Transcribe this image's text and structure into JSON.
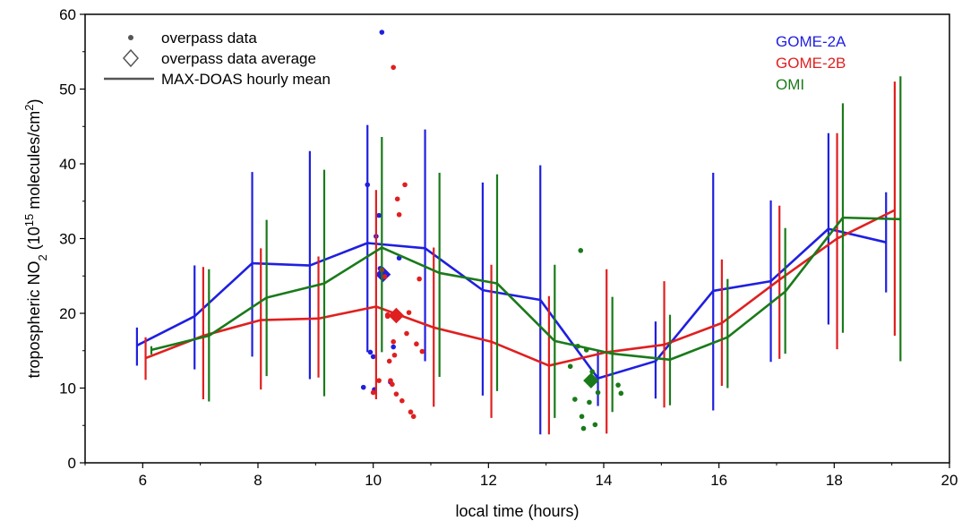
{
  "chart_data": {
    "type": "line",
    "xlabel": "local time (hours)",
    "ylabel_parts": {
      "prefix": "tropospheric NO",
      "sub": "2",
      "mid": " (10",
      "sup1": "15",
      "mid2": " molecules/cm",
      "sup2": "2",
      "suffix": ")"
    },
    "xlim": [
      5,
      20
    ],
    "ylim": [
      0,
      60
    ],
    "xticks": [
      6,
      8,
      10,
      12,
      14,
      16,
      18,
      20
    ],
    "yticks": [
      0,
      10,
      20,
      30,
      40,
      50,
      60
    ],
    "legend": {
      "items": [
        {
          "symbol": "dot",
          "label": "overpass data"
        },
        {
          "symbol": "diamond",
          "label": "overpass data average"
        },
        {
          "symbol": "line",
          "label": "MAX-DOAS hourly mean"
        }
      ],
      "placement": "top-left"
    },
    "instrument_labels": [
      {
        "name": "GOME-2A",
        "color": "#1f1fe0"
      },
      {
        "name": "GOME-2B",
        "color": "#e01f1f"
      },
      {
        "name": "OMI",
        "color": "#1a7a1a"
      }
    ],
    "series": [
      {
        "name": "GOME-2A",
        "color": "#1f1fe0",
        "x": [
          5.9,
          6.9,
          7.9,
          8.9,
          9.9,
          10.9,
          11.9,
          12.9,
          13.9,
          14.9,
          15.9,
          16.9,
          17.9,
          18.9
        ],
        "y": [
          15.7,
          19.6,
          26.7,
          26.4,
          29.4,
          28.7,
          23.1,
          21.8,
          11.3,
          13.6,
          23.0,
          24.3,
          31.3,
          29.5
        ],
        "err_low": [
          13.0,
          12.5,
          14.2,
          11.2,
          14.8,
          13.6,
          9.0,
          3.8,
          7.6,
          8.6,
          7.0,
          13.5,
          18.5,
          22.8
        ],
        "err_high": [
          18.1,
          26.4,
          38.9,
          41.7,
          45.2,
          44.6,
          37.5,
          39.8,
          15.0,
          18.9,
          38.8,
          35.1,
          44.1,
          36.2
        ],
        "overpass_x": [
          9.9,
          9.95,
          10.0,
          10.02,
          10.05,
          10.1,
          10.12,
          10.15,
          10.2,
          10.35,
          10.3,
          10.45
        ],
        "overpass_y": [
          37.2,
          14.8,
          14.2,
          9.8,
          30.3,
          33.1,
          26.0,
          25.6,
          25.0,
          15.5,
          10.8,
          27.4
        ],
        "overpass_extra": [
          {
            "x": 10.15,
            "y": 57.6
          },
          {
            "x": 9.83,
            "y": 10.1
          }
        ],
        "average": {
          "x": 10.17,
          "y": 25.2
        }
      },
      {
        "name": "GOME-2B",
        "color": "#e01f1f",
        "x": [
          6.05,
          7.05,
          8.05,
          9.05,
          10.05,
          11.05,
          12.05,
          13.05,
          14.05,
          15.05,
          16.05,
          17.05,
          18.05,
          19.05
        ],
        "y": [
          14.0,
          17.0,
          19.1,
          19.3,
          20.9,
          18.1,
          16.2,
          13.0,
          14.8,
          15.8,
          18.7,
          24.5,
          30.0,
          33.8
        ],
        "err_low": [
          11.1,
          8.5,
          9.8,
          11.4,
          8.5,
          7.5,
          6.0,
          3.8,
          3.9,
          7.4,
          10.3,
          13.9,
          15.2,
          17.0
        ],
        "err_high": [
          16.8,
          26.2,
          28.7,
          27.6,
          36.5,
          28.8,
          26.5,
          22.3,
          25.9,
          24.3,
          27.2,
          34.4,
          44.1,
          51.0
        ],
        "overpass_x": [
          10.0,
          10.1,
          10.15,
          10.2,
          10.25,
          10.28,
          10.3,
          10.33,
          10.37,
          10.4,
          10.42,
          10.45,
          10.5,
          10.55,
          10.58,
          10.62,
          10.65,
          10.7,
          10.75,
          10.8,
          10.85,
          10.25,
          10.35
        ],
        "overpass_y": [
          9.4,
          11.0,
          25.8,
          24.9,
          19.6,
          13.6,
          11.0,
          10.5,
          14.4,
          9.2,
          35.3,
          33.2,
          8.3,
          37.2,
          17.3,
          20.1,
          6.8,
          6.2,
          15.9,
          24.6,
          14.9,
          19.8,
          16.2
        ],
        "overpass_extra": [
          {
            "x": 10.35,
            "y": 52.9
          }
        ],
        "average": {
          "x": 10.4,
          "y": 19.7
        }
      },
      {
        "name": "OMI",
        "color": "#1a7a1a",
        "x": [
          6.15,
          7.15,
          8.15,
          9.15,
          10.15,
          11.15,
          12.15,
          13.15,
          14.15,
          15.15,
          16.15,
          17.15,
          18.15,
          19.15
        ],
        "y": [
          15.1,
          17.0,
          22.1,
          24.0,
          28.8,
          25.4,
          24.0,
          16.3,
          14.6,
          13.8,
          16.8,
          22.9,
          32.8,
          32.6
        ],
        "err_low": [
          14.5,
          8.2,
          11.6,
          8.9,
          14.8,
          11.5,
          9.6,
          6.0,
          6.8,
          7.7,
          10.0,
          14.6,
          17.4,
          13.6
        ],
        "err_high": [
          15.6,
          25.9,
          32.5,
          39.2,
          43.6,
          38.8,
          38.6,
          26.5,
          22.2,
          19.8,
          24.6,
          31.4,
          48.1,
          51.7
        ],
        "overpass_x": [
          13.42,
          13.55,
          13.62,
          13.7,
          13.75,
          13.8,
          13.85,
          13.9,
          14.25,
          14.3,
          13.5,
          13.65
        ],
        "overpass_y": [
          12.9,
          15.6,
          6.2,
          15.1,
          8.1,
          12.2,
          5.1,
          9.4,
          10.4,
          9.3,
          8.5,
          4.6
        ],
        "overpass_extra": [
          {
            "x": 13.6,
            "y": 28.4
          }
        ],
        "average": {
          "x": 13.78,
          "y": 11.0
        }
      }
    ]
  }
}
